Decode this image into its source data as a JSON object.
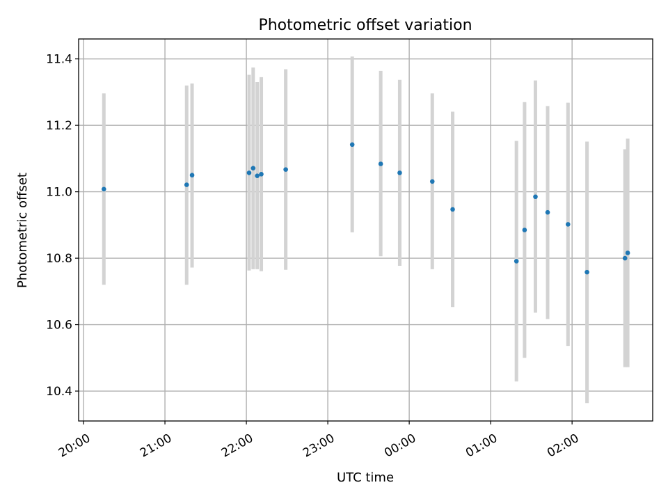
{
  "chart_data": {
    "type": "scatter",
    "title": "Photometric offset variation",
    "xlabel": "UTC time",
    "ylabel": "Photometric offset",
    "x_tick_labels": [
      "20:00",
      "21:00",
      "22:00",
      "23:00",
      "00:00",
      "01:00",
      "02:00"
    ],
    "x_tick_hours": [
      20,
      21,
      22,
      23,
      24,
      25,
      26
    ],
    "xlim": [
      19.94,
      26.99
    ],
    "y_ticks": [
      10.4,
      10.6,
      10.8,
      11.0,
      11.2,
      11.4
    ],
    "y_tick_labels": [
      "10.4",
      "10.6",
      "10.8",
      "11.0",
      "11.2",
      "11.4"
    ],
    "ylim": [
      10.31,
      11.46
    ],
    "grid": true,
    "colors": {
      "points": "#1f77b4",
      "error_bars": "#d3d3d3",
      "grid": "#b0b0b0"
    },
    "series": [
      {
        "points": [
          {
            "x": "20:15",
            "y": 11.008,
            "ylow": 10.72,
            "yhigh": 11.296
          },
          {
            "x": "21:16",
            "y": 11.021,
            "ylow": 10.72,
            "yhigh": 11.32
          },
          {
            "x": "21:20",
            "y": 11.05,
            "ylow": 10.772,
            "yhigh": 11.326
          },
          {
            "x": "22:02",
            "y": 11.057,
            "ylow": 10.763,
            "yhigh": 11.352
          },
          {
            "x": "22:05",
            "y": 11.071,
            "ylow": 10.767,
            "yhigh": 11.374
          },
          {
            "x": "22:08",
            "y": 11.048,
            "ylow": 10.767,
            "yhigh": 11.33
          },
          {
            "x": "22:11",
            "y": 11.053,
            "ylow": 10.761,
            "yhigh": 11.345
          },
          {
            "x": "22:29",
            "y": 11.067,
            "ylow": 10.765,
            "yhigh": 11.369
          },
          {
            "x": "23:18",
            "y": 11.142,
            "ylow": 10.878,
            "yhigh": 11.407
          },
          {
            "x": "23:39",
            "y": 11.084,
            "ylow": 10.806,
            "yhigh": 11.364
          },
          {
            "x": "23:53",
            "y": 11.057,
            "ylow": 10.777,
            "yhigh": 11.337
          },
          {
            "x": "00:17",
            "y": 11.031,
            "ylow": 10.767,
            "yhigh": 11.296
          },
          {
            "x": "00:32",
            "y": 10.947,
            "ylow": 10.653,
            "yhigh": 11.241
          },
          {
            "x": "01:19",
            "y": 10.791,
            "ylow": 10.429,
            "yhigh": 11.153
          },
          {
            "x": "01:25",
            "y": 10.885,
            "ylow": 10.5,
            "yhigh": 11.27
          },
          {
            "x": "01:33",
            "y": 10.985,
            "ylow": 10.636,
            "yhigh": 11.335
          },
          {
            "x": "01:42",
            "y": 10.938,
            "ylow": 10.617,
            "yhigh": 11.258
          },
          {
            "x": "01:57",
            "y": 10.902,
            "ylow": 10.536,
            "yhigh": 11.268
          },
          {
            "x": "02:11",
            "y": 10.758,
            "ylow": 10.364,
            "yhigh": 11.151
          },
          {
            "x": "02:39",
            "y": 10.8,
            "ylow": 10.472,
            "yhigh": 11.128
          },
          {
            "x": "02:41",
            "y": 10.816,
            "ylow": 10.472,
            "yhigh": 11.16
          }
        ]
      }
    ]
  }
}
